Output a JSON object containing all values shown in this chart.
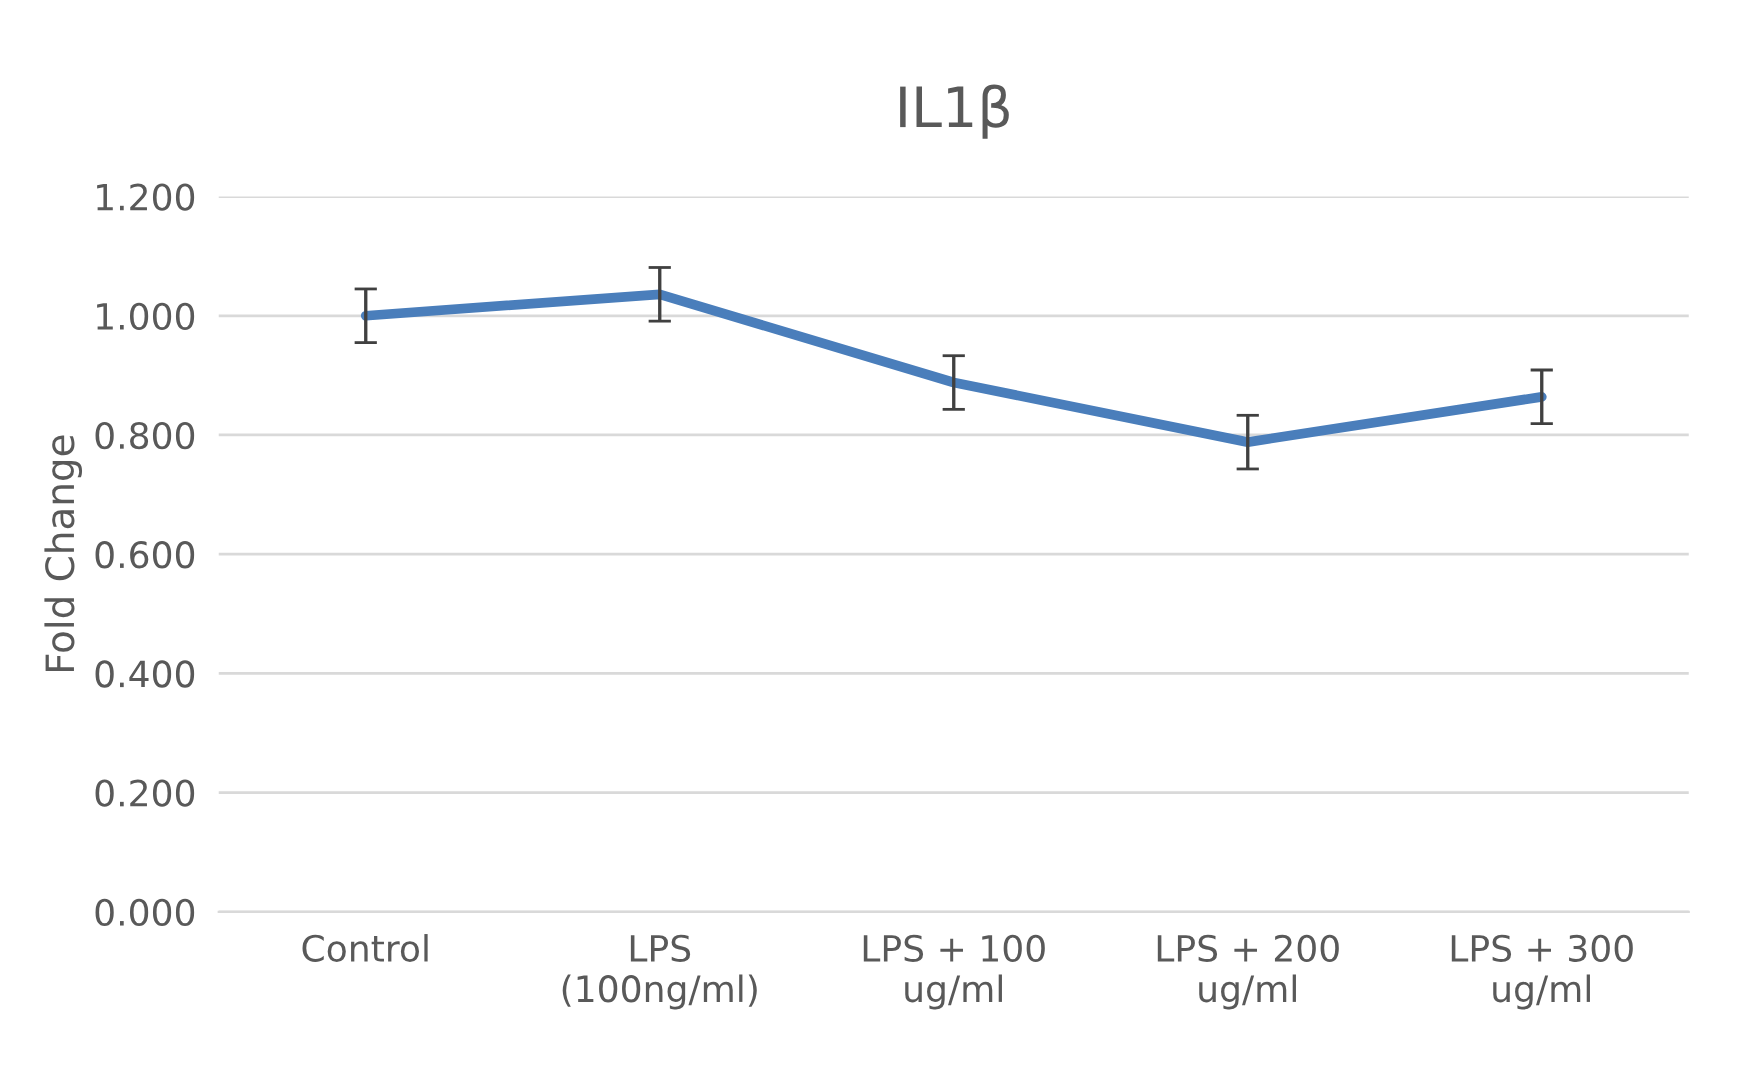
{
  "chart_data": {
    "type": "line",
    "title": "IL1β",
    "ylabel": "Fold Change",
    "categories": [
      "Control",
      "LPS\n(100ng/ml)",
      "LPS + 100\nug/ml",
      "LPS + 200\nug/ml",
      "LPS + 300\nug/ml"
    ],
    "series": [
      {
        "color": "#4a7ebb",
        "values": [
          1.0,
          1.036,
          0.888,
          0.788,
          0.864
        ],
        "errors": [
          0.045,
          0.045,
          0.045,
          0.045,
          0.045
        ]
      }
    ],
    "ylim": [
      0,
      1.2
    ],
    "yticks": [
      {
        "value": 0,
        "label": "0.000"
      },
      {
        "value": 0.2,
        "label": "0.200"
      },
      {
        "value": 0.4,
        "label": "0.400"
      },
      {
        "value": 0.6,
        "label": "0.600"
      },
      {
        "value": 0.8,
        "label": "0.800"
      },
      {
        "value": 1.0,
        "label": "1.000"
      },
      {
        "value": 1.2,
        "label": "1.200"
      }
    ],
    "grid": "y",
    "line_style": "solid",
    "marker": "none"
  }
}
